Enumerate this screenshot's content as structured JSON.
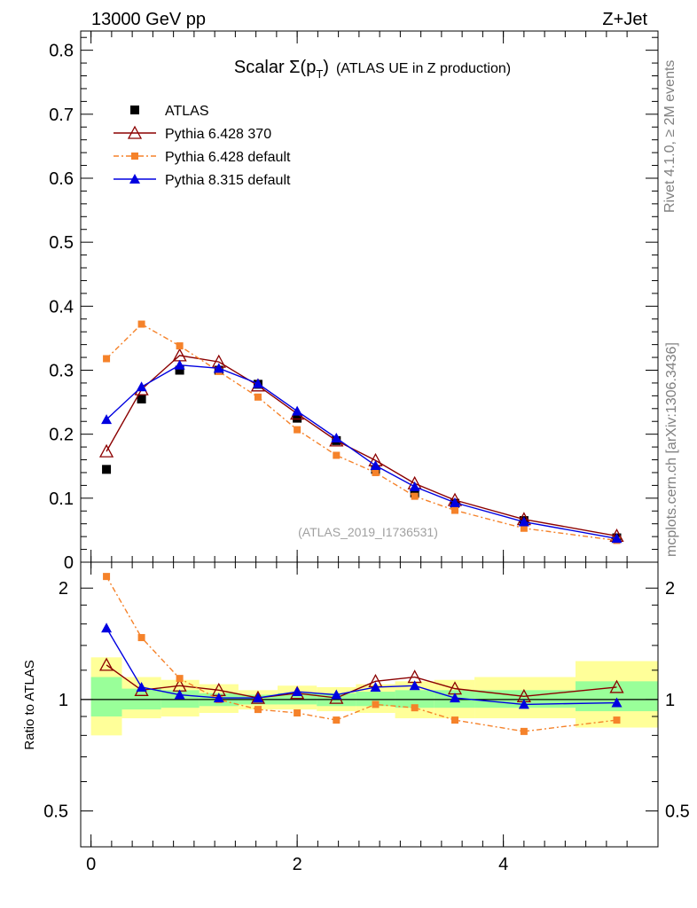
{
  "header": {
    "left": "13000 GeV pp",
    "right": "Z+Jet"
  },
  "side_labels": {
    "rivet": "Rivet 4.1.0, ≥ 2M events",
    "mcplots": "mcplots.cern.ch [arXiv:1306.3436]"
  },
  "colors": {
    "atlas": "#000000",
    "py6_370": "#8b0000",
    "py6_default": "#f5822a",
    "py8": "#0000e0",
    "band_inner": "#99ff99",
    "band_outer": "#ffff99"
  },
  "chart_data": [
    {
      "type": "line",
      "title": "Scalar Σ(p",
      "title_sub": "T",
      "title_suffix": ")",
      "title_extra": "(ATLAS UE in Z production)",
      "watermark": "(ATLAS_2019_I1736531)",
      "ylim": [
        0,
        0.83
      ],
      "yticks": [
        0,
        0.1,
        0.2,
        0.3,
        0.4,
        0.5,
        0.6,
        0.7,
        0.8
      ],
      "ytick_labels": [
        "0",
        "0.1",
        "0.2",
        "0.3",
        "0.4",
        "0.5",
        "0.6",
        "0.7",
        "0.8"
      ],
      "xlim": [
        -0.1,
        5.5
      ],
      "x": [
        0.15,
        0.49,
        0.86,
        1.24,
        1.62,
        2.0,
        2.38,
        2.76,
        3.14,
        3.53,
        4.2,
        5.1
      ],
      "series": [
        {
          "name": "ATLAS",
          "key": "atlas",
          "marker": "square",
          "line": "none",
          "values": [
            0.145,
            0.255,
            0.3,
            0.3,
            0.278,
            0.225,
            0.19,
            0.145,
            0.108,
            0.092,
            0.065,
            0.038
          ]
        },
        {
          "name": "Pythia 6.428 370",
          "key": "py6_370",
          "marker": "triangle-open",
          "line": "solid",
          "values": [
            0.173,
            0.27,
            0.323,
            0.313,
            0.276,
            0.232,
            0.19,
            0.159,
            0.123,
            0.097,
            0.067,
            0.041
          ]
        },
        {
          "name": "Pythia 6.428 default",
          "key": "py6_default",
          "marker": "small-square",
          "line": "dashdot",
          "values": [
            0.318,
            0.372,
            0.338,
            0.298,
            0.258,
            0.207,
            0.167,
            0.14,
            0.103,
            0.081,
            0.053,
            0.034
          ]
        },
        {
          "name": "Pythia 8.315 default",
          "key": "py8",
          "marker": "triangle",
          "line": "solid",
          "values": [
            0.223,
            0.274,
            0.308,
            0.303,
            0.279,
            0.236,
            0.194,
            0.151,
            0.118,
            0.093,
            0.063,
            0.037
          ]
        }
      ]
    },
    {
      "type": "line",
      "ylabel": "Ratio to ATLAS",
      "yscale": "log",
      "ylim": [
        0.4,
        2.35
      ],
      "yticks": [
        0.5,
        1,
        2
      ],
      "ytick_labels": [
        "0.5",
        "1",
        "2"
      ],
      "xlim": [
        -0.1,
        5.5
      ],
      "xticks": [
        0,
        2,
        4
      ],
      "xtick_labels": [
        "0",
        "2",
        "4"
      ],
      "x": [
        0.15,
        0.49,
        0.86,
        1.24,
        1.62,
        2.0,
        2.38,
        2.76,
        3.14,
        3.53,
        4.2,
        5.1
      ],
      "bin_edges": [
        0.0,
        0.3,
        0.68,
        1.05,
        1.43,
        1.81,
        2.19,
        2.57,
        2.95,
        3.33,
        3.72,
        4.7,
        5.5
      ],
      "band_inner": [
        [
          0.9,
          1.15
        ],
        [
          0.94,
          1.07
        ],
        [
          0.95,
          1.06
        ],
        [
          0.96,
          1.04
        ],
        [
          0.97,
          1.03
        ],
        [
          0.97,
          1.04
        ],
        [
          0.96,
          1.04
        ],
        [
          0.96,
          1.05
        ],
        [
          0.95,
          1.06
        ],
        [
          0.95,
          1.06
        ],
        [
          0.95,
          1.06
        ],
        [
          0.93,
          1.12
        ]
      ],
      "band_outer": [
        [
          0.8,
          1.3
        ],
        [
          0.89,
          1.15
        ],
        [
          0.9,
          1.13
        ],
        [
          0.92,
          1.1
        ],
        [
          0.94,
          1.06
        ],
        [
          0.94,
          1.09
        ],
        [
          0.93,
          1.08
        ],
        [
          0.92,
          1.1
        ],
        [
          0.89,
          1.12
        ],
        [
          0.89,
          1.13
        ],
        [
          0.89,
          1.15
        ],
        [
          0.84,
          1.27
        ]
      ],
      "series": [
        {
          "name": "Pythia 6.428 370",
          "key": "py6_370",
          "marker": "triangle-open",
          "line": "solid",
          "values": [
            1.24,
            1.06,
            1.09,
            1.06,
            1.01,
            1.04,
            1.01,
            1.12,
            1.15,
            1.07,
            1.02,
            1.08
          ]
        },
        {
          "name": "Pythia 6.428 default",
          "key": "py6_default",
          "marker": "small-square",
          "line": "dashdot",
          "values": [
            2.15,
            1.47,
            1.14,
            1.0,
            0.94,
            0.92,
            0.88,
            0.97,
            0.95,
            0.88,
            0.82,
            0.88
          ]
        },
        {
          "name": "Pythia 8.315 default",
          "key": "py8",
          "marker": "triangle",
          "line": "solid",
          "values": [
            1.56,
            1.08,
            1.03,
            1.01,
            1.01,
            1.05,
            1.03,
            1.08,
            1.09,
            1.01,
            0.97,
            0.98
          ]
        }
      ]
    }
  ]
}
